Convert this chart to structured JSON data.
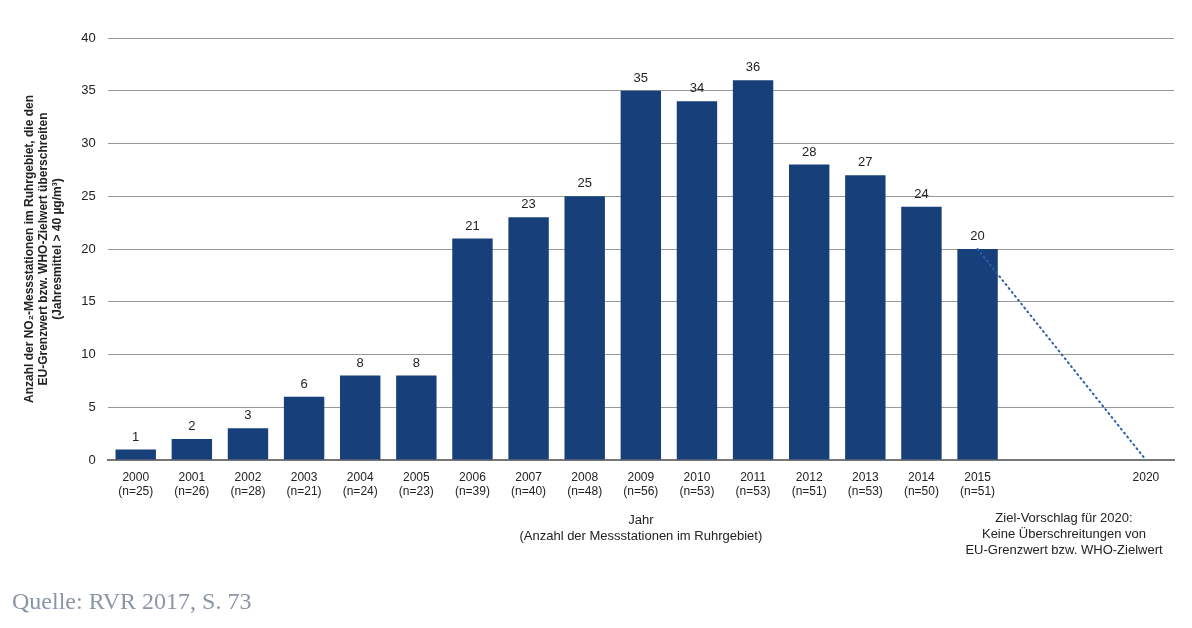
{
  "chart_data": {
    "type": "bar",
    "categories": [
      "2000\n(n=25)",
      "2001\n(n=26)",
      "2002\n(n=28)",
      "2003\n(n=21)",
      "2004\n(n=24)",
      "2005\n(n=23)",
      "2006\n(n=39)",
      "2007\n(n=40)",
      "2008\n(n=48)",
      "2009\n(n=56)",
      "2010\n(n=53)",
      "2011\n(n=53)",
      "2012\n(n=51)",
      "2013\n(n=53)",
      "2014\n(n=50)",
      "2015\n(n=51)",
      null,
      null,
      "2020"
    ],
    "series": [
      {
        "color": "#173f7a",
        "values": [
          1,
          2,
          3,
          6,
          8,
          8,
          21,
          23,
          25,
          35,
          34,
          36,
          28,
          27,
          24,
          20,
          null,
          null,
          null
        ],
        "value_labels": [
          "1",
          "2",
          "3",
          "6",
          "8",
          "8",
          "21",
          "23",
          "25",
          "35",
          "34",
          "36",
          "28",
          "27",
          "24",
          "20",
          null,
          null,
          null
        ]
      },
      {
        "type": "line",
        "color": "#2b5ea8",
        "line_style": "dotted",
        "marker": "none",
        "values": [
          null,
          null,
          null,
          null,
          null,
          null,
          null,
          null,
          null,
          null,
          null,
          null,
          null,
          null,
          null,
          20,
          null,
          null,
          0
        ]
      }
    ],
    "xlabel": "Jahr\n(Anzahl der Messstationen im Ruhrgebiet)",
    "ylabel": "Anzahl der NO₂-Messstationen im Ruhrgebiet, die den\nEU-Grenzwert bzw. WHO-Zielwert überschreiten\n(Jahresmittel > 40 µg/m³)",
    "ylim": [
      0,
      40
    ],
    "yticks": [
      0,
      5,
      10,
      15,
      20,
      25,
      30,
      35,
      40
    ],
    "grid": "y",
    "legend": false,
    "annotations": [
      "Ziel-Vorschlag für 2020:\nKeine Überschreitungen von\nEU-Grenzwert bzw. WHO-Zielwert",
      "Quelle: RVR 2017, S. 73"
    ]
  }
}
